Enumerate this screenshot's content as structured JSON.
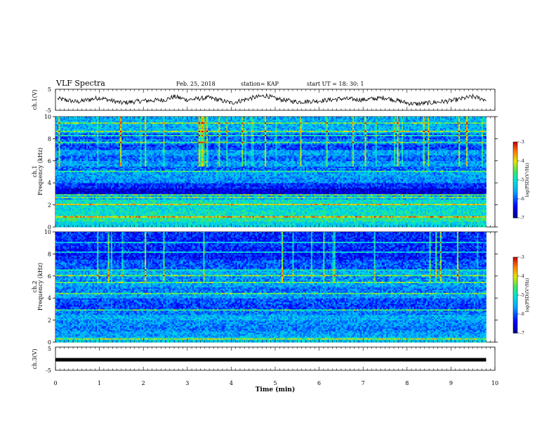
{
  "header": {
    "title": "VLF Spectra",
    "date": "Feb. 25, 2018",
    "station": "station= KAP",
    "start": "start  UT =   18: 30: 1"
  },
  "chart_data": [
    {
      "id": "ch1_waveform",
      "type": "line",
      "ylabel": "ch.1(V)",
      "ylim": [
        -5,
        5
      ],
      "yticks": [
        "5",
        "-5"
      ],
      "x_range_min": [
        0.05,
        9.8
      ],
      "approx_series": {
        "x": [
          0.05,
          0.5,
          1.0,
          1.5,
          2.0,
          2.5,
          2.7,
          3.0,
          3.5,
          4.0,
          4.5,
          4.8,
          5.0,
          5.5,
          6.0,
          6.5,
          7.0,
          7.5,
          8.0,
          8.2,
          8.5,
          9.0,
          9.5,
          9.8
        ],
        "y": [
          0.5,
          -1.0,
          1.0,
          -1.5,
          -0.5,
          0.0,
          1.5,
          0.0,
          1.0,
          -1.5,
          1.0,
          2.0,
          0.5,
          -1.0,
          -0.5,
          0.5,
          0.0,
          1.0,
          -1.5,
          -2.0,
          -1.5,
          -0.5,
          1.5,
          0.0
        ]
      }
    },
    {
      "id": "ch1_spectrogram",
      "type": "heatmap",
      "ylabel_channel": "ch.1",
      "ylabel": "Frequency  (kHz)",
      "ylim": [
        0,
        10
      ],
      "yticks": [
        "0",
        "2",
        "4",
        "6",
        "8",
        "10"
      ],
      "x_range_min": [
        0,
        9.8
      ],
      "colorbar": {
        "label": "log(PSD)(V²/Hz)",
        "range": [
          -7,
          -3
        ],
        "ticks": [
          "-3",
          "-4",
          "-5",
          "-6",
          "-7"
        ]
      },
      "freq_bands_kHz": [
        0,
        0.5,
        1,
        1.5,
        2,
        2.5,
        3,
        3.5,
        4,
        4.5,
        5,
        5.5,
        6,
        6.5,
        7,
        7.5,
        8,
        8.5,
        9,
        9.5
      ],
      "approx_log_psd": [
        -5.2,
        -4.8,
        -5.0,
        -5.1,
        -5.0,
        -5.6,
        -6.6,
        -6.2,
        -5.7,
        -5.6,
        -5.9,
        -5.6,
        -5.9,
        -5.6,
        -6.1,
        -5.8,
        -6.0,
        -5.5,
        -5.5,
        -5.5
      ]
    },
    {
      "id": "ch2_spectrogram",
      "type": "heatmap",
      "ylabel_channel": "ch.2",
      "ylabel": "Frequency  (kHz)",
      "ylim": [
        0,
        10
      ],
      "yticks": [
        "0",
        "2",
        "4",
        "6",
        "8",
        "10"
      ],
      "x_range_min": [
        0,
        9.8
      ],
      "colorbar": {
        "label": "log(PSD)(V²/Hz)",
        "range": [
          -7,
          -3
        ],
        "ticks": [
          "-3",
          "-4",
          "-5",
          "-6",
          "-7"
        ]
      },
      "freq_bands_kHz": [
        0,
        0.5,
        1,
        1.5,
        2,
        2.5,
        3,
        3.5,
        4,
        4.5,
        5,
        5.5,
        6,
        6.5,
        7,
        7.5,
        8,
        8.5,
        9,
        9.5
      ],
      "approx_log_psd": [
        -5.3,
        -5.6,
        -5.8,
        -5.7,
        -5.5,
        -5.8,
        -6.1,
        -6.0,
        -5.6,
        -5.8,
        -5.6,
        -5.7,
        -5.5,
        -6.0,
        -6.0,
        -6.3,
        -6.3,
        -6.2,
        -6.3,
        -6.2
      ]
    },
    {
      "id": "ch3_waveform",
      "type": "line",
      "ylabel": "ch.3(V)",
      "ylim": [
        -5,
        5
      ],
      "yticks": [
        "5",
        "-5"
      ],
      "x_range_min": [
        0,
        9.8
      ],
      "approx_series": {
        "x": [
          0,
          9.8
        ],
        "y": [
          0,
          0
        ]
      }
    }
  ],
  "x_axis": {
    "label": "Time  (min)",
    "ticks": [
      "0",
      "1",
      "2",
      "3",
      "4",
      "5",
      "6",
      "7",
      "8",
      "9",
      "10"
    ],
    "xlim": [
      0,
      10
    ]
  }
}
